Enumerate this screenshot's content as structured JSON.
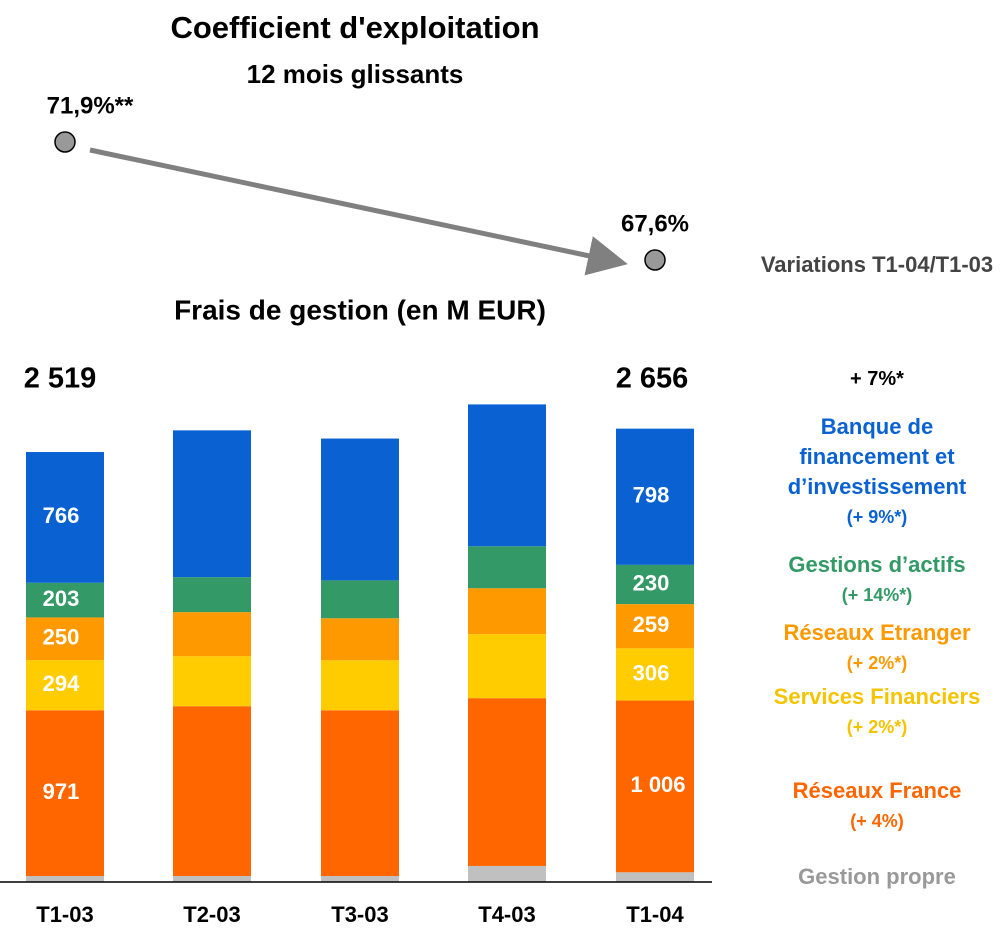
{
  "chart_data": {
    "type": "bar",
    "stacked": true,
    "title": "Frais de gestion (en M EUR)",
    "categories": [
      "T1-03",
      "T2-03",
      "T3-03",
      "T4-03",
      "T1-04"
    ],
    "ylim": [
      0,
      2750
    ],
    "totals": [
      2519,
      null,
      null,
      null,
      2656
    ],
    "total_labels": [
      "2 519",
      null,
      null,
      null,
      "2 656"
    ],
    "variations_title": "Variations T1-04/T1-03",
    "total_variation": "+ 7%*",
    "series": [
      {
        "name": "Gestion propre",
        "color": "#c0c0c0",
        "text_color": "#999999",
        "values": [
          35,
          35,
          35,
          94,
          57
        ],
        "value_labels": [
          null,
          null,
          null,
          null,
          null
        ]
      },
      {
        "name": "Réseaux France",
        "variation": "(+ 4%)",
        "color": "#ff6600",
        "text_color": "#ff6600",
        "values": [
          971,
          995,
          971,
          983,
          1006
        ],
        "value_labels": [
          "971",
          null,
          null,
          null,
          "1 006"
        ]
      },
      {
        "name": "Services Financiers",
        "variation": "(+ 2%*)",
        "color": "#ffcc00",
        "text_color": "#f5c400",
        "values": [
          294,
          293,
          293,
          375,
          306
        ],
        "value_labels": [
          "294",
          null,
          null,
          null,
          "306"
        ]
      },
      {
        "name": "Réseaux Etranger",
        "variation": "(+ 2%*)",
        "color": "#ff9900",
        "text_color": "#ff9900",
        "values": [
          250,
          258,
          246,
          269,
          259
        ],
        "value_labels": [
          "250",
          null,
          null,
          null,
          "259"
        ]
      },
      {
        "name": "Gestions d’actifs",
        "variation": "(+ 14%*)",
        "color": "#339966",
        "text_color": "#339966",
        "values": [
          203,
          205,
          222,
          246,
          230
        ],
        "value_labels": [
          "203",
          null,
          null,
          null,
          "230"
        ]
      },
      {
        "name": "Banque de financement et d’investissement",
        "variation": "(+ 9%*)",
        "color": "#0a62d2",
        "text_color": "#0a62d2",
        "values": [
          766,
          860,
          831,
          831,
          798
        ],
        "value_labels": [
          "766",
          null,
          null,
          null,
          "798"
        ]
      }
    ]
  },
  "ratio": {
    "title": "Coefficient d'exploitation",
    "subtitle": "12 mois glissants",
    "values": [
      71.9,
      67.6
    ],
    "value_labels": [
      "71,9%**",
      "67,6%"
    ]
  }
}
